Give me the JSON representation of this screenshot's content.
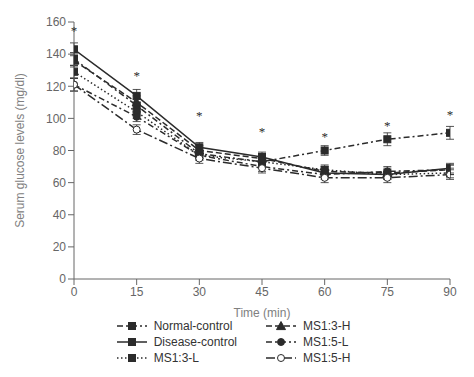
{
  "chart_data": {
    "type": "line",
    "xlabel": "Time (min)",
    "ylabel": "Serum glucose levels (mg/dl)",
    "x": [
      0,
      15,
      30,
      45,
      60,
      75,
      90
    ],
    "xlim": [
      0,
      90
    ],
    "xticks": [
      0,
      15,
      30,
      45,
      60,
      75,
      90
    ],
    "ylim": [
      0,
      160
    ],
    "yticks": [
      0,
      20,
      40,
      60,
      80,
      100,
      120,
      140,
      160
    ],
    "color": "#2b2b2b",
    "grid": false,
    "legend": "bottom",
    "series": [
      {
        "name": "Normal-control",
        "values": [
          137,
          108,
          78,
          73,
          80,
          87,
          91
        ],
        "yerr": [
          4,
          4,
          3,
          3,
          3,
          4,
          4
        ],
        "marker": "square",
        "line_style": "dashdot"
      },
      {
        "name": "Disease-control",
        "values": [
          143,
          114,
          82,
          76,
          66,
          65,
          69
        ],
        "yerr": [
          4,
          4,
          3,
          3,
          3,
          3,
          3
        ],
        "marker": "square",
        "line_style": "solid"
      },
      {
        "name": "MS1:3-L",
        "values": [
          129,
          104,
          77,
          73,
          68,
          65,
          66
        ],
        "yerr": [
          4,
          4,
          3,
          3,
          3,
          3,
          3
        ],
        "marker": "square",
        "line_style": "dotted"
      },
      {
        "name": "MS1:3-H",
        "values": [
          136,
          110,
          80,
          75,
          67,
          66,
          68
        ],
        "yerr": [
          4,
          4,
          3,
          3,
          3,
          3,
          3
        ],
        "marker": "triangle",
        "line_style": "dashed"
      },
      {
        "name": "MS1:5-L",
        "values": [
          121,
          101,
          77,
          70,
          65,
          67,
          68
        ],
        "yerr": [
          4,
          3,
          3,
          3,
          3,
          3,
          3
        ],
        "marker": "circle",
        "line_style": "dashdot"
      },
      {
        "name": "MS1:5-H",
        "values": [
          121,
          93,
          75,
          69,
          63,
          63,
          65
        ],
        "yerr": [
          4,
          3,
          3,
          3,
          3,
          3,
          3
        ],
        "marker": "open_circle",
        "line_style": "longdashdot"
      }
    ],
    "annotations": [
      {
        "x": 0,
        "y": 150,
        "text": "*"
      },
      {
        "x": 15,
        "y": 122,
        "text": "*"
      },
      {
        "x": 30,
        "y": 97,
        "text": "*"
      },
      {
        "x": 45,
        "y": 87,
        "text": "*"
      },
      {
        "x": 60,
        "y": 84,
        "text": "*"
      },
      {
        "x": 75,
        "y": 91,
        "text": "*"
      },
      {
        "x": 90,
        "y": 98,
        "text": "*"
      }
    ]
  }
}
